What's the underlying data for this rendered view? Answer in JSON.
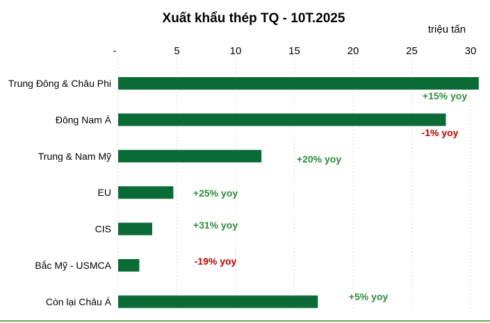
{
  "chart_data": {
    "type": "bar",
    "orientation": "horizontal",
    "title": "Xuất khẩu thép TQ - 10T.2025",
    "unit_label": "triệu tấn",
    "xlim": [
      0,
      30.8
    ],
    "x_ticks": [
      0,
      5,
      10,
      15,
      20,
      25,
      30
    ],
    "x_tick_labels": [
      "-",
      "5",
      "10",
      "15",
      "20",
      "25",
      "30"
    ],
    "tick_position": "top",
    "grid": "vertical dashed",
    "categories": [
      "Trung Đông & Châu Phi",
      "Đông Nam Á",
      "Trung & Nam Mỹ",
      "EU",
      "CIS",
      "Bắc Mỹ - USMCA",
      "Còn lại Châu Á"
    ],
    "values": [
      30.7,
      27.9,
      12.2,
      4.7,
      2.9,
      1.8,
      17.0
    ],
    "annotations": [
      "+15% yoy",
      "-1% yoy",
      "+20% yoy",
      "+25% yoy",
      "+31% yoy",
      "-19% yoy",
      "+5% yoy"
    ],
    "annotation_colors": [
      "#2e8b3a",
      "#c00000",
      "#2e8b3a",
      "#2e8b3a",
      "#2e8b3a",
      "#c00000",
      "#2e8b3a"
    ],
    "bar_color": "#0b6b36",
    "baseline_color": "#6aa84f"
  }
}
